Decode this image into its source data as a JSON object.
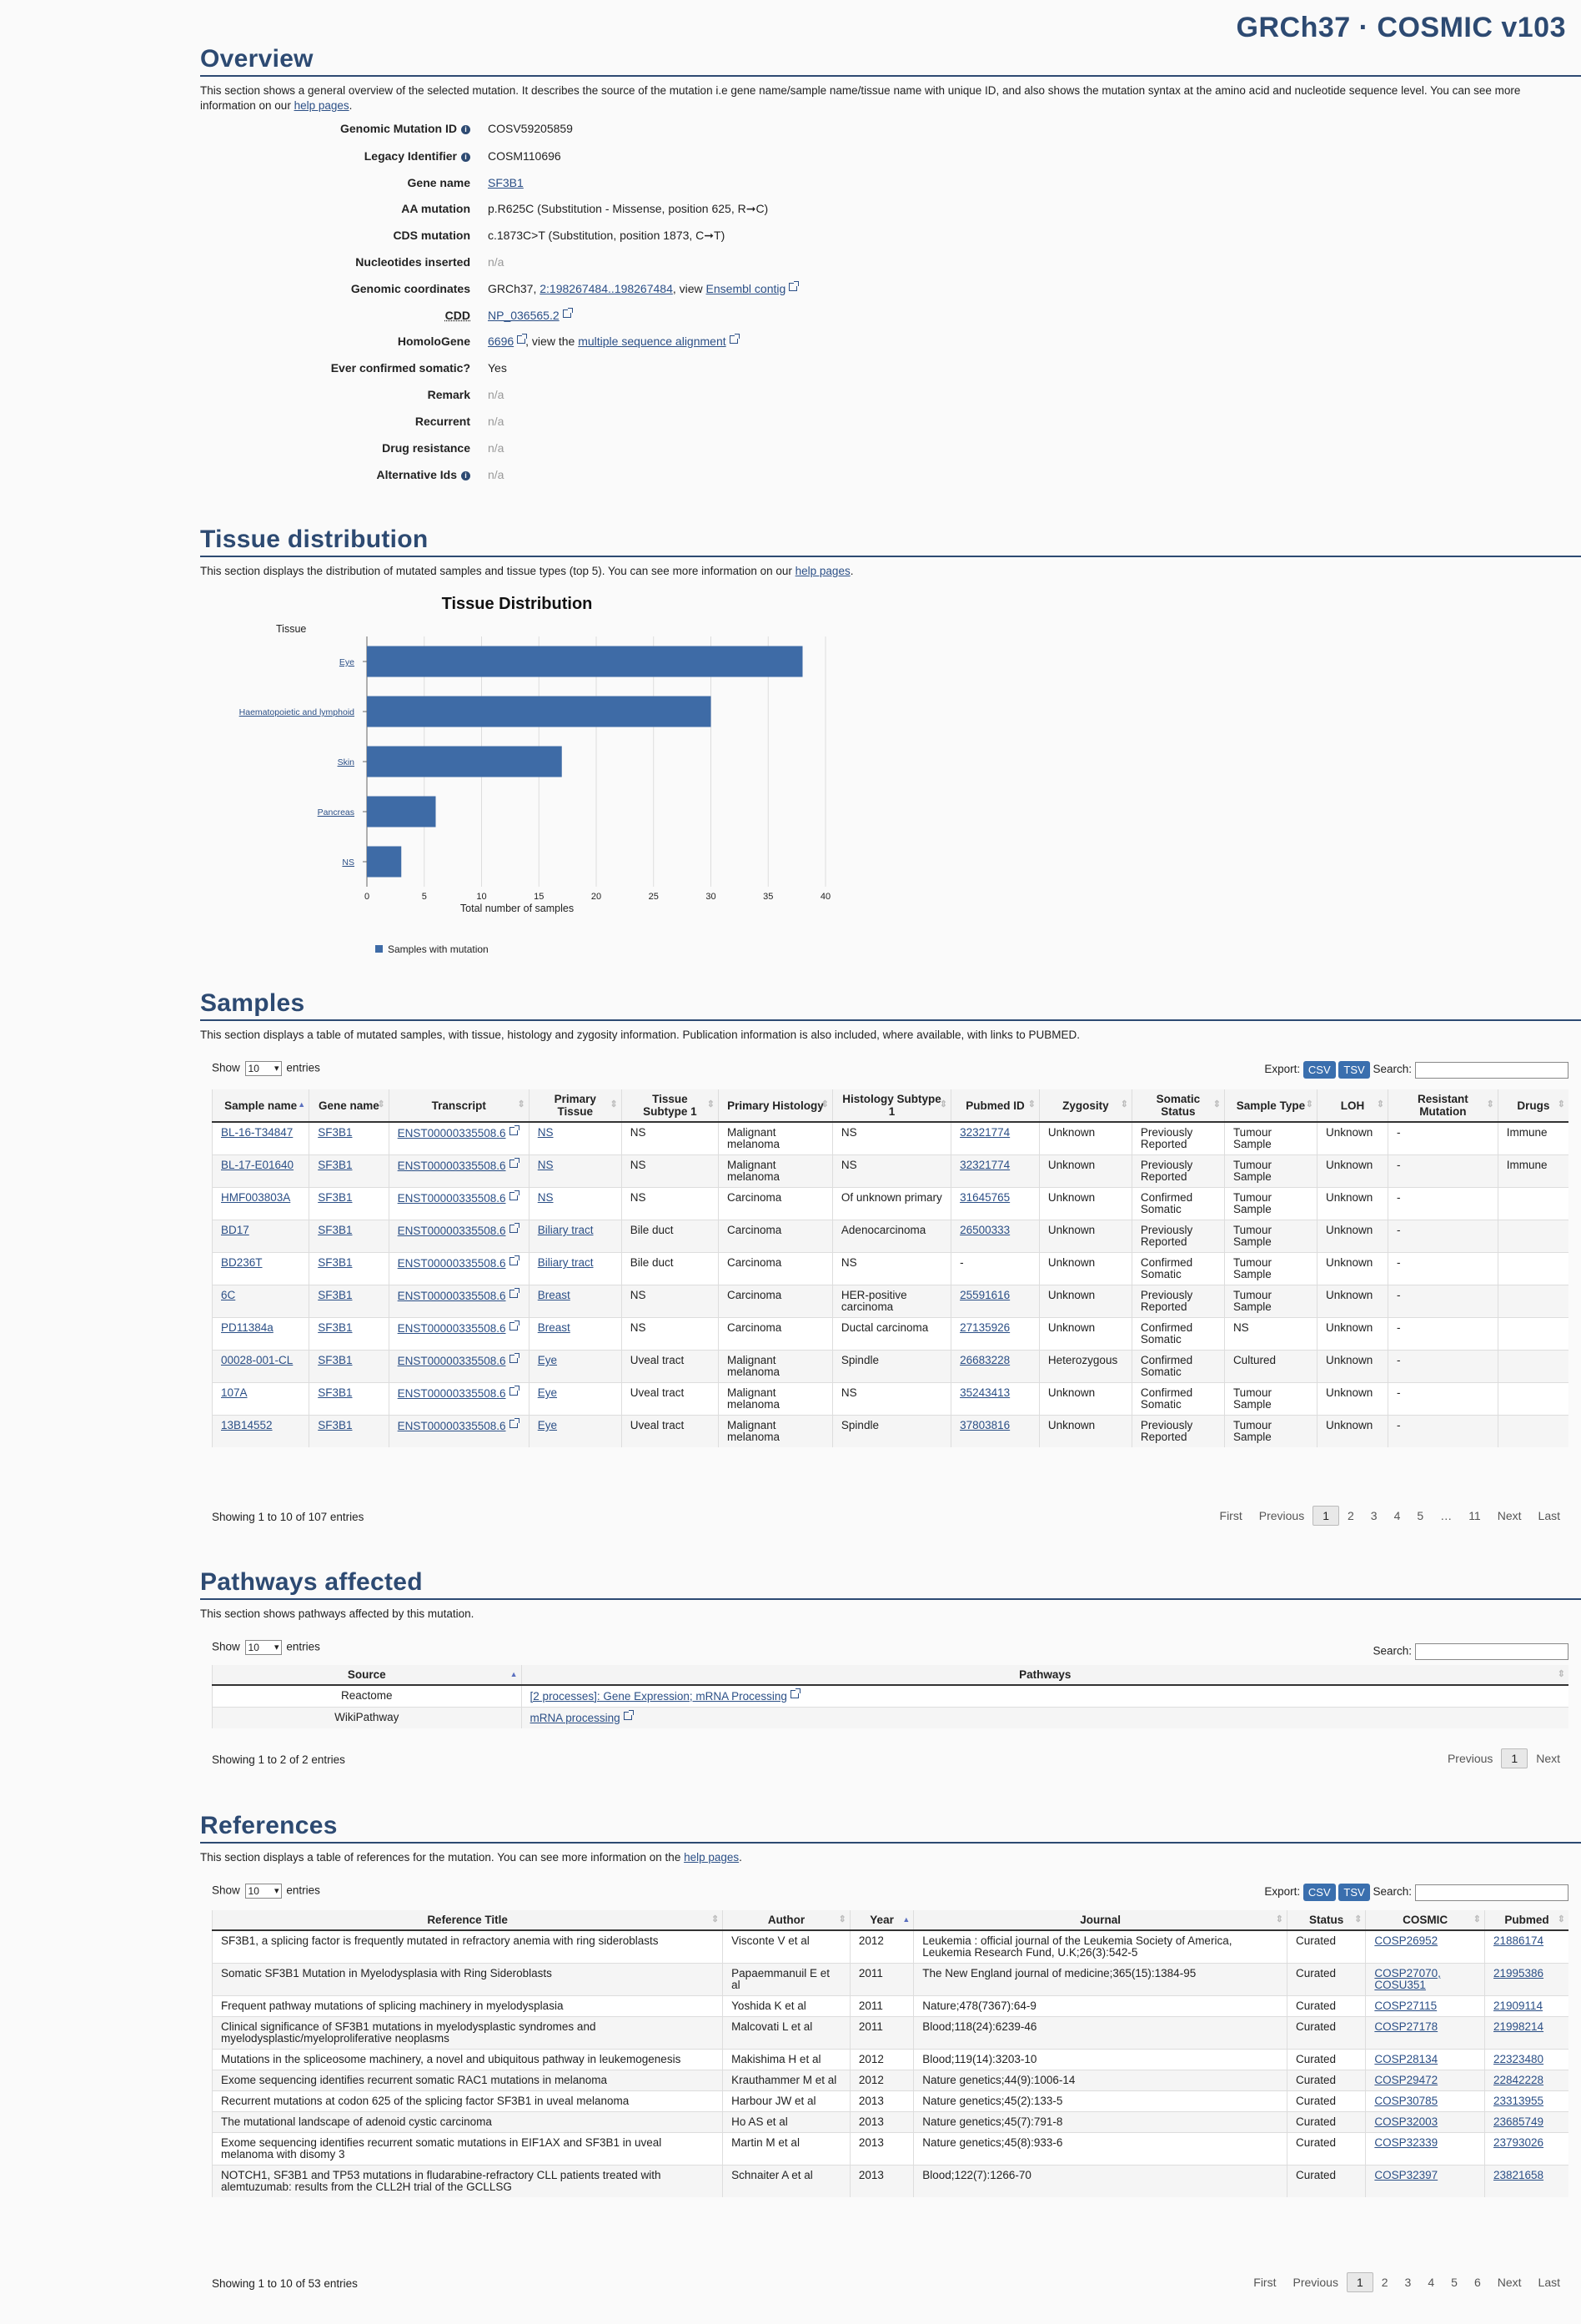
{
  "brand": "GRCh37 · COSMIC v103",
  "overview": {
    "title": "Overview",
    "desc_pre": "This section shows a general overview of the selected mutation. It describes the source of the mutation i.e gene name/sample name/tissue name with unique ID, and also shows the mutation syntax at the amino acid and nucleotide sequence level. You can see more information on our ",
    "desc_link": "help pages",
    "desc_post": ".",
    "rows": {
      "gmid_label": "Genomic Mutation ID",
      "gmid_value": "COSV59205859",
      "legacy_label": "Legacy Identifier",
      "legacy_value": "COSM110696",
      "gene_label": "Gene name",
      "gene_value": "SF3B1",
      "aa_label": "AA mutation",
      "aa_value": "p.R625C (Substitution - Missense, position 625, R➞C)",
      "cds_label": "CDS mutation",
      "cds_value": "c.1873C>T (Substitution, position 1873, C➞T)",
      "nuc_label": "Nucleotides inserted",
      "nuc_value": "n/a",
      "coord_label": "Genomic coordinates",
      "coord_pre": "GRCh37, ",
      "coord_link": "2:198267484..198267484",
      "coord_mid": ", view ",
      "coord_link2": "Ensembl contig",
      "cdd_label": "CDD",
      "cdd_value": "NP_036565.2",
      "homolo_label": "HomoloGene",
      "homolo_value": "6696",
      "homolo_mid": ", view the ",
      "homolo_link": "multiple sequence alignment",
      "somatic_label": "Ever confirmed somatic?",
      "somatic_value": "Yes",
      "remark_label": "Remark",
      "remark_value": "n/a",
      "recurrent_label": "Recurrent",
      "recurrent_value": "n/a",
      "drug_label": "Drug resistance",
      "drug_value": "n/a",
      "alt_label": "Alternative Ids",
      "alt_value": "n/a"
    }
  },
  "tissue": {
    "title": "Tissue distribution",
    "desc_pre": "This section displays the distribution of mutated samples and tissue types (top 5). You can see more information on our ",
    "desc_link": "help pages",
    "desc_post": "."
  },
  "chart_data": {
    "type": "bar",
    "orientation": "horizontal",
    "title": "Tissue Distribution",
    "ylabel": "Tissue",
    "xlabel": "Total number of samples",
    "categories": [
      "Eye",
      "Haematopoietic and lymphoid",
      "Skin",
      "Pancreas",
      "NS"
    ],
    "values": [
      38,
      30,
      17,
      6,
      3
    ],
    "xlim": [
      0,
      40
    ],
    "xticks": [
      0,
      5,
      10,
      15,
      20,
      25,
      30,
      35,
      40
    ],
    "grid": true,
    "legend": [
      {
        "name": "Samples with mutation",
        "color": "#3e6ba6"
      }
    ],
    "legend_position": "bottom-left",
    "bar_color": "#3e6ba6"
  },
  "samples": {
    "title": "Samples",
    "desc": "This section displays a table of mutated samples, with tissue, histology and zygosity information. Publication information is also included, where available, with links to PUBMED.",
    "show_label": "Show",
    "entries_label": "entries",
    "page_size": "10",
    "export_label": "Export:",
    "csv": "CSV",
    "tsv": "TSV",
    "search_label": "Search:",
    "headers": [
      "Sample name",
      "Gene name",
      "Transcript",
      "Primary Tissue",
      "Tissue Subtype 1",
      "Primary Histology",
      "Histology Subtype 1",
      "Pubmed ID",
      "Zygosity",
      "Somatic Status",
      "Sample Type",
      "LOH",
      "Resistant Mutation",
      "Drugs"
    ],
    "rows": [
      [
        "BL-16-T34847",
        "SF3B1",
        "ENST00000335508.6",
        "NS",
        "NS",
        "Malignant melanoma",
        "NS",
        "32321774",
        "Unknown",
        "Previously Reported",
        "Tumour Sample",
        "Unknown",
        "-",
        "Immune"
      ],
      [
        "BL-17-E01640",
        "SF3B1",
        "ENST00000335508.6",
        "NS",
        "NS",
        "Malignant melanoma",
        "NS",
        "32321774",
        "Unknown",
        "Previously Reported",
        "Tumour Sample",
        "Unknown",
        "-",
        "Immune"
      ],
      [
        "HMF003803A",
        "SF3B1",
        "ENST00000335508.6",
        "NS",
        "NS",
        "Carcinoma",
        "Of unknown primary",
        "31645765",
        "Unknown",
        "Confirmed Somatic",
        "Tumour Sample",
        "Unknown",
        "-",
        ""
      ],
      [
        "BD17",
        "SF3B1",
        "ENST00000335508.6",
        "Biliary tract",
        "Bile duct",
        "Carcinoma",
        "Adenocarcinoma",
        "26500333",
        "Unknown",
        "Previously Reported",
        "Tumour Sample",
        "Unknown",
        "-",
        ""
      ],
      [
        "BD236T",
        "SF3B1",
        "ENST00000335508.6",
        "Biliary tract",
        "Bile duct",
        "Carcinoma",
        "NS",
        "-",
        "Unknown",
        "Confirmed Somatic",
        "Tumour Sample",
        "Unknown",
        "-",
        ""
      ],
      [
        "6C",
        "SF3B1",
        "ENST00000335508.6",
        "Breast",
        "NS",
        "Carcinoma",
        "HER-positive carcinoma",
        "25591616",
        "Unknown",
        "Previously Reported",
        "Tumour Sample",
        "Unknown",
        "-",
        ""
      ],
      [
        "PD11384a",
        "SF3B1",
        "ENST00000335508.6",
        "Breast",
        "NS",
        "Carcinoma",
        "Ductal carcinoma",
        "27135926",
        "Unknown",
        "Confirmed Somatic",
        "NS",
        "Unknown",
        "-",
        ""
      ],
      [
        "00028-001-CL",
        "SF3B1",
        "ENST00000335508.6",
        "Eye",
        "Uveal tract",
        "Malignant melanoma",
        "Spindle",
        "26683228",
        "Heterozygous",
        "Confirmed Somatic",
        "Cultured",
        "Unknown",
        "-",
        ""
      ],
      [
        "107A",
        "SF3B1",
        "ENST00000335508.6",
        "Eye",
        "Uveal tract",
        "Malignant melanoma",
        "NS",
        "35243413",
        "Unknown",
        "Confirmed Somatic",
        "Tumour Sample",
        "Unknown",
        "-",
        ""
      ],
      [
        "13B14552",
        "SF3B1",
        "ENST00000335508.6",
        "Eye",
        "Uveal tract",
        "Malignant melanoma",
        "Spindle",
        "37803816",
        "Unknown",
        "Previously Reported",
        "Tumour Sample",
        "Unknown",
        "-",
        ""
      ]
    ],
    "showing": "Showing 1 to 10 of 107 entries",
    "pager": [
      "First",
      "Previous",
      "1",
      "2",
      "3",
      "4",
      "5",
      "…",
      "11",
      "Next",
      "Last"
    ]
  },
  "pathways": {
    "title": "Pathways affected",
    "desc": "This section shows pathways affected by this mutation.",
    "show_label": "Show",
    "entries_label": "entries",
    "page_size": "10",
    "search_label": "Search:",
    "headers": [
      "Source",
      "Pathways"
    ],
    "rows": [
      [
        "Reactome",
        "[2 processes]: Gene Expression; mRNA Processing"
      ],
      [
        "WikiPathway",
        "mRNA processing"
      ]
    ],
    "showing": "Showing 1 to 2 of 2 entries",
    "pager": [
      "Previous",
      "1",
      "Next"
    ]
  },
  "references": {
    "title": "References",
    "desc_pre": "This section displays a table of references for the mutation. You can see more information on the ",
    "desc_link": "help pages",
    "desc_post": ".",
    "show_label": "Show",
    "entries_label": "entries",
    "page_size": "10",
    "export_label": "Export:",
    "csv": "CSV",
    "tsv": "TSV",
    "search_label": "Search:",
    "headers": [
      "Reference Title",
      "Author",
      "Year",
      "Journal",
      "Status",
      "COSMIC",
      "Pubmed"
    ],
    "rows": [
      [
        "SF3B1, a splicing factor is frequently mutated in refractory anemia with ring sideroblasts",
        "Visconte V et al",
        "2012",
        "Leukemia : official journal of the Leukemia Society of America, Leukemia Research Fund, U.K;26(3):542-5",
        "Curated",
        "COSP26952",
        "21886174"
      ],
      [
        "Somatic SF3B1 Mutation in Myelodysplasia with Ring Sideroblasts",
        "Papaemmanuil E et al",
        "2011",
        "The New England journal of medicine;365(15):1384-95",
        "Curated",
        "COSP27070, COSU351",
        "21995386"
      ],
      [
        "Frequent pathway mutations of splicing machinery in myelodysplasia",
        "Yoshida K et al",
        "2011",
        "Nature;478(7367):64-9",
        "Curated",
        "COSP27115",
        "21909114"
      ],
      [
        "Clinical significance of SF3B1 mutations in myelodysplastic syndromes and myelodysplastic/myeloproliferative neoplasms",
        "Malcovati L et al",
        "2011",
        "Blood;118(24):6239-46",
        "Curated",
        "COSP27178",
        "21998214"
      ],
      [
        "Mutations in the spliceosome machinery, a novel and ubiquitous pathway in leukemogenesis",
        "Makishima H et al",
        "2012",
        "Blood;119(14):3203-10",
        "Curated",
        "COSP28134",
        "22323480"
      ],
      [
        "Exome sequencing identifies recurrent somatic RAC1 mutations in melanoma",
        "Krauthammer M et al",
        "2012",
        "Nature genetics;44(9):1006-14",
        "Curated",
        "COSP29472",
        "22842228"
      ],
      [
        "Recurrent mutations at codon 625 of the splicing factor SF3B1 in uveal melanoma",
        "Harbour JW et al",
        "2013",
        "Nature genetics;45(2):133-5",
        "Curated",
        "COSP30785",
        "23313955"
      ],
      [
        "The mutational landscape of adenoid cystic carcinoma",
        "Ho AS et al",
        "2013",
        "Nature genetics;45(7):791-8",
        "Curated",
        "COSP32003",
        "23685749"
      ],
      [
        "Exome sequencing identifies recurrent somatic mutations in EIF1AX and SF3B1 in uveal melanoma with disomy 3",
        "Martin M et al",
        "2013",
        "Nature genetics;45(8):933-6",
        "Curated",
        "COSP32339",
        "23793026"
      ],
      [
        "NOTCH1, SF3B1 and TP53 mutations in fludarabine-refractory CLL patients treated with alemtuzumab: results from the CLL2H trial of the GCLLSG",
        "Schnaiter A et al",
        "2013",
        "Blood;122(7):1266-70",
        "Curated",
        "COSP32397",
        "23821658"
      ]
    ],
    "showing": "Showing 1 to 10 of 53 entries",
    "pager": [
      "First",
      "Previous",
      "1",
      "2",
      "3",
      "4",
      "5",
      "6",
      "Next",
      "Last"
    ]
  }
}
